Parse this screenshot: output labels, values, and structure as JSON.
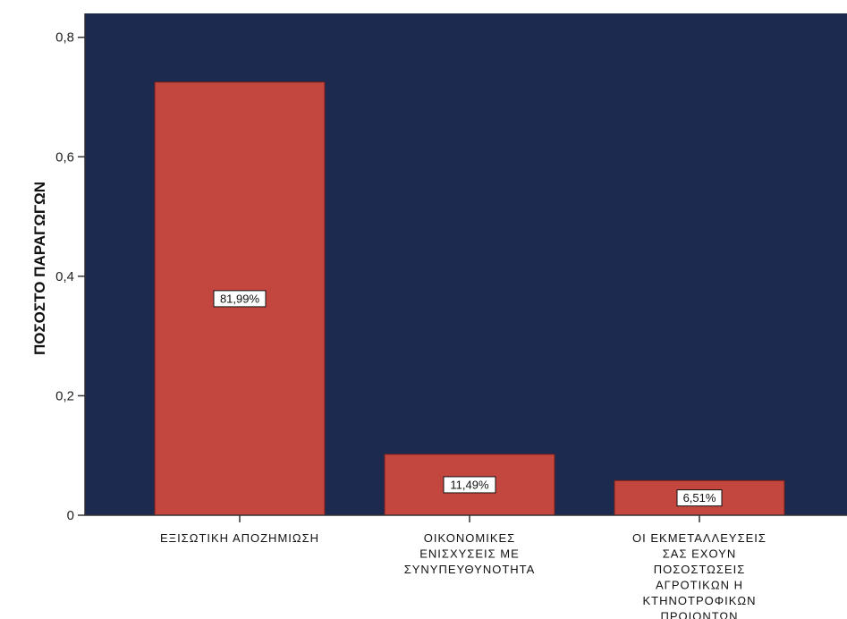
{
  "chart_data": {
    "type": "bar",
    "ylabel": "ΠΟΣΟΣΤΟ ΠΑΡΑΓΩΓΩΝ",
    "xlabel": "",
    "ylim": [
      0,
      0.84
    ],
    "yticks": [
      0,
      0.2,
      0.4,
      0.6,
      0.8
    ],
    "ytick_labels": [
      "0",
      "0,2",
      "0,4",
      "0,6",
      "0,8"
    ],
    "categories": [
      [
        "ΕΞΙΣΩΤΙΚΗ ΑΠΟΖΗΜΙΩΣΗ"
      ],
      [
        "ΟΙΚΟΝΟΜΙΚΕΣ",
        "ΕΝΙΣΧΥΣΕΙΣ ΜΕ",
        "ΣΥΝΥΠΕΥΘΥΝΟΤΗΤΑ"
      ],
      [
        "ΟΙ ΕΚΜΕΤΑΛΛΕΥΣΕΙΣ",
        "ΣΑΣ ΕΧΟΥΝ",
        "ΠΟΣΟΣΤΩΣΕΙΣ",
        "ΑΓΡΟΤΙΚΩΝ Η",
        "ΚΤΗΝΟΤΡΟΦΙΚΩΝ",
        "ΠΡΟΙΟΝΤΩΝ"
      ]
    ],
    "values": [
      0.725,
      0.102,
      0.058
    ],
    "data_labels": [
      "81,99%",
      "11,49%",
      "6,51%"
    ],
    "colors": {
      "plot_background": "#1b2a4e",
      "bar_fill": "#c4473f",
      "bar_stroke": "#7a1f1a",
      "label_box": "#ffffff"
    }
  }
}
